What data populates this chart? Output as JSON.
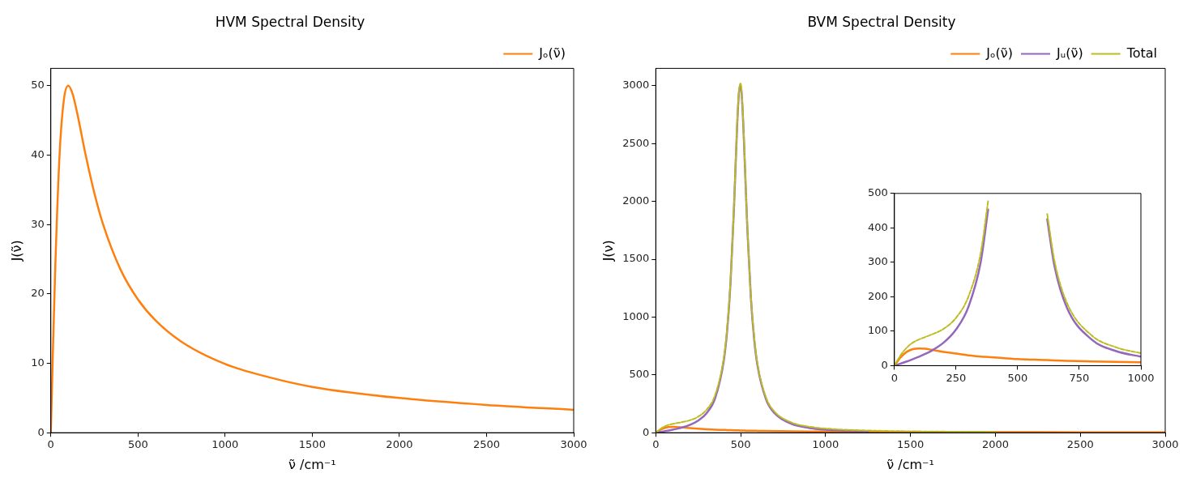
{
  "chart_data": [
    {
      "type": "line",
      "title": "HVM Spectral Density",
      "xlabel": "ν̃ /cm⁻¹",
      "ylabel": "J(ν̃)",
      "x": [
        0,
        10,
        25,
        50,
        75,
        100,
        125,
        150,
        200,
        250,
        300,
        400,
        500,
        600,
        750,
        1000,
        1250,
        1500,
        2000,
        2500,
        3000
      ],
      "series": [
        {
          "name": "Jₒ(ν̃)",
          "color": "#ff7f0e",
          "values": [
            0,
            9.9,
            23.5,
            40,
            48,
            50,
            48.8,
            46.2,
            40,
            34.5,
            30,
            23.5,
            19.2,
            16.2,
            13.1,
            9.9,
            8.0,
            6.6,
            5.0,
            4.0,
            3.3
          ]
        }
      ],
      "xlim": [
        0,
        3000
      ],
      "xticks": [
        0,
        500,
        1000,
        1500,
        2000,
        2500,
        3000
      ],
      "ylim": [
        0,
        52.5
      ],
      "yticks": [
        0,
        10,
        20,
        30,
        40,
        50
      ],
      "grid": false,
      "legend": "top right",
      "marker": "none"
    },
    {
      "type": "line",
      "title": "BVM Spectral Density",
      "xlabel": "ν̃ /cm⁻¹",
      "ylabel": "J(ν)",
      "x": [
        0,
        25,
        50,
        75,
        100,
        125,
        150,
        200,
        250,
        300,
        350,
        400,
        420,
        440,
        460,
        470,
        480,
        490,
        500,
        510,
        520,
        530,
        540,
        560,
        580,
        600,
        650,
        700,
        800,
        900,
        1000,
        1250,
        1500,
        2000,
        2500,
        3000
      ],
      "series": [
        {
          "name": "Jₒ(ν̃)",
          "color": "#ff7f0e",
          "values": [
            0,
            24,
            40,
            48,
            50,
            49,
            46,
            40,
            35,
            30,
            26,
            24,
            23,
            22,
            21,
            20,
            20,
            20,
            19,
            19,
            19,
            18,
            18,
            17,
            17,
            16,
            15,
            14,
            12,
            11,
            10,
            8,
            7,
            5,
            4,
            3
          ]
        },
        {
          "name": "Jᵤ(ν̃)",
          "color": "#9467bd",
          "values": [
            0,
            6,
            12,
            19,
            26,
            34,
            43,
            67,
            105,
            170,
            300,
            619,
            877,
            1290,
            1922,
            2307,
            2679,
            2941,
            3000,
            2830,
            2500,
            2112,
            1743,
            1170,
            803,
            573,
            287,
            168,
            76,
            42,
            26,
            11,
            null,
            null,
            null,
            null
          ]
        },
        {
          "name": "Total",
          "color": "#bcbd22",
          "line_style": "dashed",
          "values": [
            0,
            30,
            52,
            67,
            76,
            83,
            90,
            107,
            139,
            200,
            327,
            642,
            900,
            1311,
            1943,
            2327,
            2699,
            2961,
            3019,
            2849,
            2519,
            2130,
            1761,
            1187,
            820,
            589,
            302,
            182,
            88,
            53,
            36,
            19,
            12,
            7,
            null,
            null
          ]
        }
      ],
      "xlim": [
        0,
        3000
      ],
      "xticks": [
        0,
        500,
        1000,
        1500,
        2000,
        2500,
        3000
      ],
      "ylim": [
        0,
        3150
      ],
      "yticks": [
        0,
        500,
        1000,
        1500,
        2000,
        2500,
        3000
      ],
      "grid": false,
      "legend": "top right",
      "marker": "none"
    },
    {
      "type": "line",
      "x": [
        0,
        25,
        50,
        75,
        100,
        125,
        150,
        200,
        250,
        300,
        350,
        380,
        500,
        620,
        650,
        700,
        800,
        900,
        1000
      ],
      "series": [
        {
          "color": "#ff7f0e",
          "values": [
            0,
            24,
            40,
            48,
            50,
            49,
            46,
            40,
            35,
            30,
            26,
            25,
            19,
            16,
            15,
            14,
            12,
            11,
            10
          ]
        },
        {
          "color": "#9467bd",
          "values": [
            0,
            6,
            12,
            19,
            26,
            34,
            43,
            67,
            105,
            170,
            300,
            453,
            null,
            425,
            287,
            168,
            76,
            42,
            26
          ]
        },
        {
          "color": "#bcbd22",
          "line_style": "dashed",
          "values": [
            0,
            30,
            52,
            67,
            76,
            83,
            90,
            107,
            139,
            200,
            327,
            477,
            null,
            440,
            302,
            182,
            88,
            53,
            36
          ]
        }
      ],
      "xlim": [
        0,
        1000
      ],
      "xticks": [
        0,
        250,
        500,
        750,
        1000
      ],
      "ylim": [
        0,
        500
      ],
      "yticks": [
        0,
        100,
        200,
        300,
        400,
        500
      ],
      "grid": false,
      "legend": false,
      "marker": "none"
    }
  ]
}
